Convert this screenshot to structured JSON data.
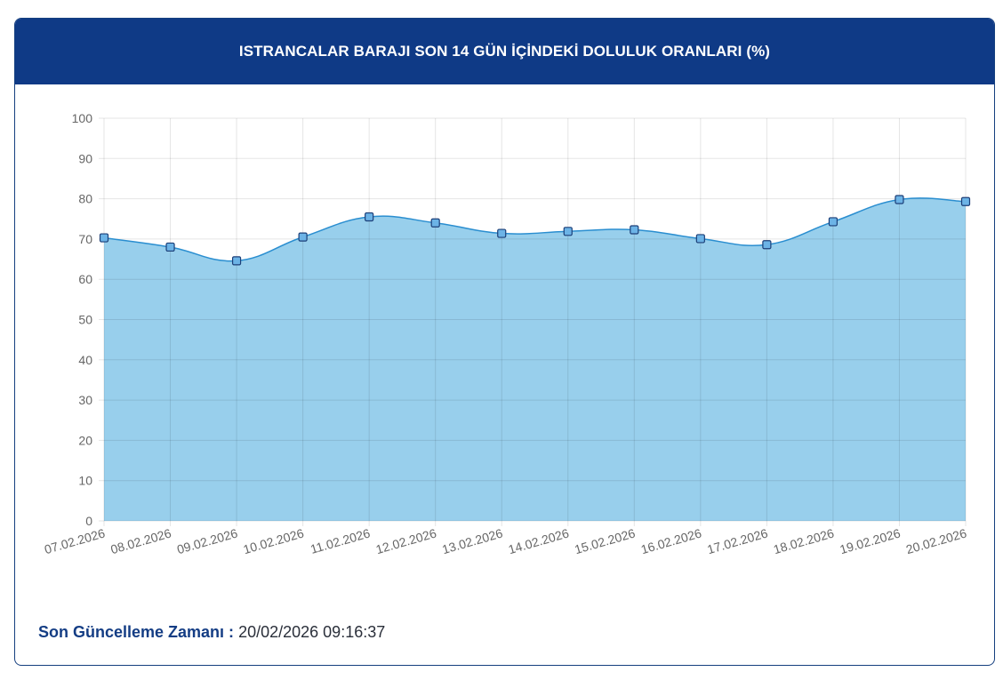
{
  "header": {
    "title": "ISTRANCALAR BARAJI SON 14 GÜN İÇİNDEKİ DOLULUK ORANLARI (%)"
  },
  "footer": {
    "label": "Son Güncelleme Zamanı :",
    "value": "20/02/2026 09:16:37"
  },
  "colors": {
    "header_bg": "#0f3a86",
    "area_fill": "#98cfec",
    "line": "#2a8ed0",
    "point_fill": "#6cb3e6",
    "point_stroke": "#1c3f78"
  },
  "chart_data": {
    "type": "area",
    "title": "ISTRANCALAR BARAJI SON 14 GÜN İÇİNDEKİ DOLULUK ORANLARI (%)",
    "xlabel": "",
    "ylabel": "",
    "ylim": [
      0,
      100
    ],
    "yticks": [
      0,
      10,
      20,
      30,
      40,
      50,
      60,
      70,
      80,
      90,
      100
    ],
    "grid": true,
    "legend": "none",
    "categories": [
      "07.02.2026",
      "08.02.2026",
      "09.02.2026",
      "10.02.2026",
      "11.02.2026",
      "12.02.2026",
      "13.02.2026",
      "14.02.2026",
      "15.02.2026",
      "16.02.2026",
      "17.02.2026",
      "18.02.2026",
      "19.02.2026",
      "20.02.2026"
    ],
    "values": [
      70.3,
      68.0,
      64.6,
      70.5,
      75.5,
      74.0,
      71.4,
      71.9,
      72.3,
      70.1,
      68.6,
      74.3,
      79.8,
      79.3
    ]
  }
}
